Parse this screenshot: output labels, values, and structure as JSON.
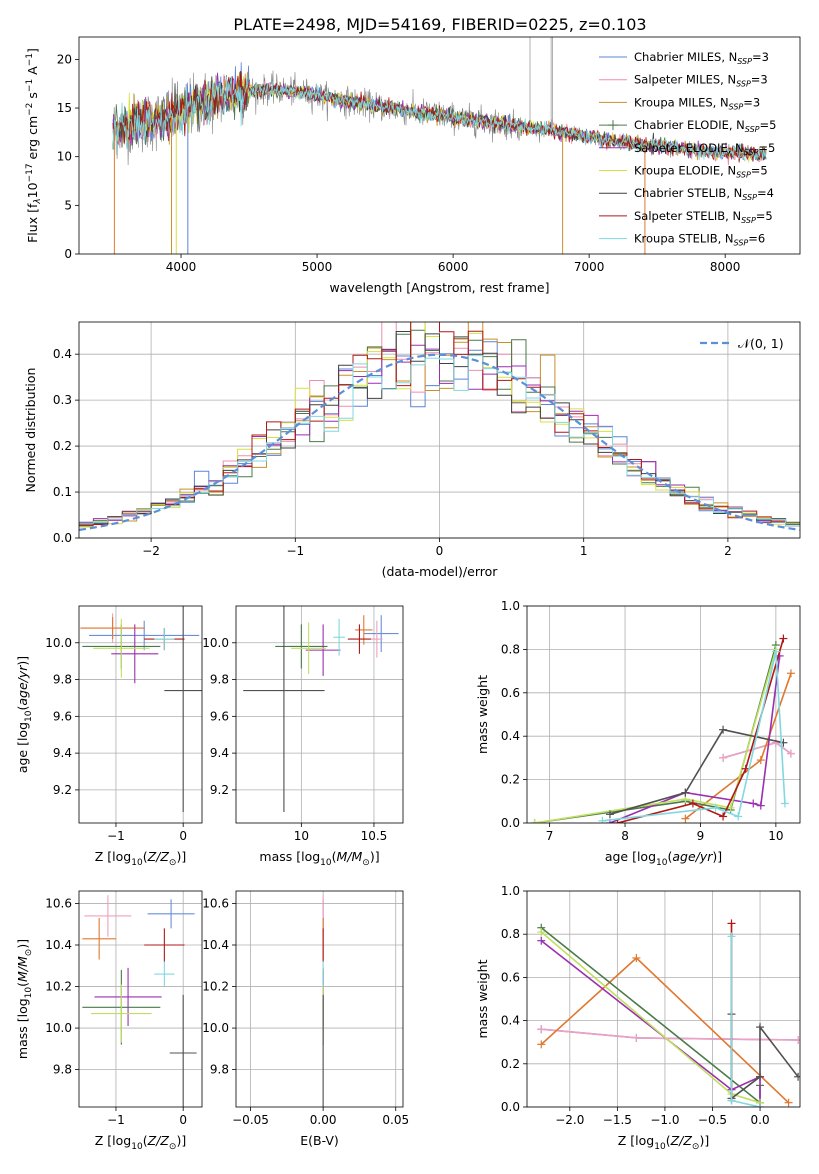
{
  "figure_title": "PLATE=2498, MJD=54169, FIBERID=0225, z=0.103",
  "series_names": [
    "Chabrier MILES",
    "Salpeter MILES",
    "Kroupa MILES",
    "Chabrier ELODIE",
    "Salpeter ELODIE",
    "Kroupa ELODIE",
    "Chabrier STELIB",
    "Salpeter STELIB",
    "Kroupa STELIB"
  ],
  "colors": [
    "#5b84d6",
    "#f08cb0",
    "#c8922a",
    "#4a7a4a",
    "#9a2fb0",
    "#d8e040",
    "#404040",
    "#b01818",
    "#7fd8e0"
  ],
  "summary_colors": [
    "#6a8fd8",
    "#f0a0c0",
    "#e07830",
    "#4a7a4a",
    "#9a2fb0",
    "#c0e060",
    "#505050",
    "#b01818",
    "#80d8e0"
  ],
  "chart_data": [
    {
      "id": "spectrum",
      "type": "line",
      "xlabel": "wavelength [Angstrom, rest frame]",
      "ylabel": "Flux [f",
      "xlim": [
        3250,
        8550
      ],
      "ylim": [
        0,
        22.3
      ],
      "xticks": [
        4000,
        5000,
        6000,
        7000,
        8000
      ],
      "yticks": [
        0,
        5,
        10,
        15,
        20
      ],
      "grid": false,
      "legend_position": "top-right",
      "legend": [
        {
          "label": "Chabrier MILES",
          "nssp": "3"
        },
        {
          "label": "Salpeter MILES",
          "nssp": "3"
        },
        {
          "label": "Kroupa MILES",
          "nssp": "3"
        },
        {
          "label": "Chabrier ELODIE",
          "nssp": "5"
        },
        {
          "label": "Salpeter ELODIE",
          "nssp": "5"
        },
        {
          "label": "Kroupa ELODIE",
          "nssp": "5"
        },
        {
          "label": "Chabrier STELIB",
          "nssp": "4"
        },
        {
          "label": "Salpeter STELIB",
          "nssp": "5"
        },
        {
          "label": "Kroupa STELIB",
          "nssp": "6"
        }
      ],
      "data_range": [
        3500,
        8300
      ],
      "continuum": [
        [
          3500,
          12.9
        ],
        [
          3700,
          13.5
        ],
        [
          3900,
          14.0
        ],
        [
          4000,
          14.6
        ],
        [
          4100,
          15.3
        ],
        [
          4300,
          16.2
        ],
        [
          4500,
          16.8
        ],
        [
          4700,
          16.9
        ],
        [
          4900,
          16.6
        ],
        [
          5100,
          16.0
        ],
        [
          5300,
          15.5
        ],
        [
          5500,
          15.1
        ],
        [
          5700,
          14.6
        ],
        [
          5900,
          14.3
        ],
        [
          6100,
          13.8
        ],
        [
          6300,
          13.5
        ],
        [
          6500,
          13.1
        ],
        [
          6700,
          12.8
        ],
        [
          6900,
          12.3
        ],
        [
          7100,
          11.8
        ],
        [
          7300,
          11.4
        ],
        [
          7500,
          11.1
        ],
        [
          7700,
          10.8
        ],
        [
          7900,
          10.5
        ],
        [
          8100,
          10.4
        ],
        [
          8300,
          10.2
        ]
      ],
      "dips": [
        [
          3510,
          0
        ],
        [
          3930,
          0
        ],
        [
          3965,
          0
        ],
        [
          4050,
          0
        ],
        [
          6805,
          0
        ],
        [
          7410,
          0
        ]
      ],
      "spikes": [
        [
          6565,
          22.3
        ],
        [
          6720,
          22.3
        ],
        [
          6730,
          22.3
        ]
      ]
    },
    {
      "id": "residuals",
      "type": "step",
      "xlabel": "(data-model)/error",
      "ylabel": "Normed distribution",
      "xlim": [
        -2.5,
        2.5
      ],
      "ylim": [
        0,
        0.47
      ],
      "xticks": [
        -2,
        -1,
        0,
        1,
        2
      ],
      "yticks": [
        0,
        0.1,
        0.2,
        0.3,
        0.4
      ],
      "grid": true,
      "legend_position": "top-right",
      "reference_label": "𝒩(0, 1)",
      "bin_edges_range": [
        -2.5,
        2.5
      ],
      "bin_width": 0.1
    },
    {
      "id": "age_vs_z",
      "type": "errorbar",
      "xlabel": "Z [log",
      "ylabel": "age  [log",
      "xlim": [
        -1.55,
        0.28
      ],
      "ylim": [
        9.02,
        10.2
      ],
      "xticks": [
        -1,
        0
      ],
      "yticks": [
        9.2,
        9.4,
        9.6,
        9.8,
        10.0
      ],
      "grid": true,
      "points": [
        {
          "x": -0.58,
          "y": 10.04,
          "xerr": 0.82,
          "yerr": 0.08
        },
        {
          "x": -1.05,
          "y": 10.08,
          "xerr": 0.45,
          "yerr": 0.08
        },
        {
          "x": -1.05,
          "y": 10.08,
          "xerr": 0.48,
          "yerr": 0.06
        },
        {
          "x": -0.92,
          "y": 9.98,
          "xerr": 0.58,
          "yerr": 0.12
        },
        {
          "x": -0.72,
          "y": 9.94,
          "xerr": 0.35,
          "yerr": 0.16
        },
        {
          "x": -0.92,
          "y": 9.97,
          "xerr": 0.42,
          "yerr": 0.16
        },
        {
          "x": 0.0,
          "y": 9.74,
          "xerr": 0.28,
          "yerr": 0.66
        },
        {
          "x": -0.28,
          "y": 10.02,
          "xerr": 0.3,
          "yerr": 0.06
        },
        {
          "x": -0.28,
          "y": 10.02,
          "xerr": 0.15,
          "yerr": 0.06
        }
      ]
    },
    {
      "id": "age_vs_mass",
      "type": "errorbar",
      "xlabel": "mass [log",
      "ylabel": "",
      "xlim": [
        9.55,
        10.7
      ],
      "ylim": [
        9.02,
        10.2
      ],
      "xticks": [
        10.0,
        10.5
      ],
      "yticks": [
        9.2,
        9.4,
        9.6,
        9.8,
        10.0
      ],
      "grid": true,
      "points": [
        {
          "x": 10.55,
          "y": 10.05,
          "xerr": 0.12,
          "yerr": 0.1
        },
        {
          "x": 10.52,
          "y": 10.02,
          "xerr": 0.04,
          "yerr": 0.1
        },
        {
          "x": 10.43,
          "y": 10.07,
          "xerr": 0.06,
          "yerr": 0.08
        },
        {
          "x": 10.0,
          "y": 9.98,
          "xerr": 0.18,
          "yerr": 0.12
        },
        {
          "x": 10.15,
          "y": 9.96,
          "xerr": 0.12,
          "yerr": 0.14
        },
        {
          "x": 10.05,
          "y": 9.97,
          "xerr": 0.12,
          "yerr": 0.14
        },
        {
          "x": 9.88,
          "y": 9.74,
          "xerr": 0.28,
          "yerr": 0.66
        },
        {
          "x": 10.4,
          "y": 10.02,
          "xerr": 0.08,
          "yerr": 0.08
        },
        {
          "x": 10.26,
          "y": 10.03,
          "xerr": 0.04,
          "yerr": 0.1
        }
      ]
    },
    {
      "id": "weight_vs_age",
      "type": "line",
      "xlabel": "age  [log",
      "ylabel": "mass weight",
      "xlim": [
        6.7,
        10.32
      ],
      "ylim": [
        0,
        1.0
      ],
      "xticks": [
        7,
        8,
        9,
        10
      ],
      "yticks": [
        0,
        0.2,
        0.4,
        0.6,
        0.8,
        1.0
      ],
      "grid": true,
      "series": [
        {
          "x": [
            9.3,
            10.0,
            10.2
          ],
          "y": [
            0.3,
            0.37,
            0.32
          ]
        },
        {
          "x": [
            9.3,
            10.0,
            10.2
          ],
          "y": [
            0.3,
            0.37,
            0.32
          ]
        },
        {
          "x": [
            8.8,
            9.8,
            10.2
          ],
          "y": [
            0.02,
            0.29,
            0.69
          ]
        },
        {
          "x": [
            6.8,
            8.8,
            9.4,
            10.0
          ],
          "y": [
            0.0,
            0.1,
            0.06,
            0.82
          ]
        },
        {
          "x": [
            7.8,
            8.8,
            9.7,
            9.8,
            10.05
          ],
          "y": [
            0.0,
            0.14,
            0.09,
            0.08,
            0.77
          ]
        },
        {
          "x": [
            6.8,
            8.8,
            9.4,
            10.0
          ],
          "y": [
            0.0,
            0.11,
            0.07,
            0.8
          ]
        },
        {
          "x": [
            7.8,
            8.8,
            9.3,
            10.1
          ],
          "y": [
            0.04,
            0.14,
            0.43,
            0.37
          ]
        },
        {
          "x": [
            7.9,
            8.9,
            9.3,
            9.6,
            10.1
          ],
          "y": [
            0.0,
            0.09,
            0.03,
            0.25,
            0.85
          ]
        },
        {
          "x": [
            7.7,
            9.2,
            9.5,
            10.0,
            10.12
          ],
          "y": [
            0.01,
            0.07,
            0.03,
            0.79,
            0.09
          ]
        }
      ]
    },
    {
      "id": "mass_vs_z",
      "type": "errorbar",
      "xlabel": "Z [log",
      "ylabel": "mass [log",
      "xlim": [
        -1.55,
        0.28
      ],
      "ylim": [
        9.62,
        10.66
      ],
      "xticks": [
        -1,
        0
      ],
      "yticks": [
        9.8,
        10.0,
        10.2,
        10.4,
        10.6
      ],
      "grid": true,
      "points": [
        {
          "x": -0.18,
          "y": 10.55,
          "xerr": 0.35,
          "yerr": 0.07
        },
        {
          "x": -1.12,
          "y": 10.54,
          "xerr": 0.35,
          "yerr": 0.1
        },
        {
          "x": -1.25,
          "y": 10.43,
          "xerr": 0.25,
          "yerr": 0.1
        },
        {
          "x": -0.92,
          "y": 10.1,
          "xerr": 0.58,
          "yerr": 0.18
        },
        {
          "x": -0.82,
          "y": 10.15,
          "xerr": 0.5,
          "yerr": 0.14
        },
        {
          "x": -0.92,
          "y": 10.07,
          "xerr": 0.45,
          "yerr": 0.14
        },
        {
          "x": 0.0,
          "y": 9.88,
          "xerr": 0.2,
          "yerr": 0.28
        },
        {
          "x": -0.28,
          "y": 10.4,
          "xerr": 0.3,
          "yerr": 0.08
        },
        {
          "x": -0.28,
          "y": 10.26,
          "xerr": 0.15,
          "yerr": 0.06
        }
      ]
    },
    {
      "id": "mass_vs_ebv",
      "type": "errorbar",
      "xlabel": "E(B-V)",
      "ylabel": "",
      "xlim": [
        -0.06,
        0.055
      ],
      "ylim": [
        9.62,
        10.66
      ],
      "xticks": [
        -0.05,
        0.0,
        0.05
      ],
      "xtick_labels": [
        "−0.05",
        "0.00",
        "0.05"
      ],
      "yticks": [
        9.8,
        10.0,
        10.2,
        10.4,
        10.6
      ],
      "grid": true,
      "points": [
        {
          "x": 0.0,
          "y": 10.55,
          "xerr": 0.0,
          "yerr": 0.07
        },
        {
          "x": 0.0,
          "y": 10.54,
          "xerr": 0.0,
          "yerr": 0.1
        },
        {
          "x": 0.0,
          "y": 10.43,
          "xerr": 0.0,
          "yerr": 0.1
        },
        {
          "x": 0.0,
          "y": 10.1,
          "xerr": 0.0,
          "yerr": 0.18
        },
        {
          "x": 0.0,
          "y": 10.15,
          "xerr": 0.0,
          "yerr": 0.14
        },
        {
          "x": 0.0,
          "y": 10.07,
          "xerr": 0.0,
          "yerr": 0.14
        },
        {
          "x": 0.0,
          "y": 9.88,
          "xerr": 0.0,
          "yerr": 0.28
        },
        {
          "x": 0.0,
          "y": 10.4,
          "xerr": 0.0,
          "yerr": 0.08
        },
        {
          "x": 0.0,
          "y": 10.26,
          "xerr": 0.0,
          "yerr": 0.06
        }
      ]
    },
    {
      "id": "weight_vs_z",
      "type": "line",
      "xlabel": "Z [log",
      "ylabel": "mass weight",
      "xlim": [
        -2.45,
        0.42
      ],
      "ylim": [
        0,
        1.0
      ],
      "xticks": [
        -2.0,
        -1.5,
        -1.0,
        -0.5,
        0.0
      ],
      "xtick_labels": [
        "−2.0",
        "−1.5",
        "−1.0",
        "−0.5",
        "0.0"
      ],
      "yticks": [
        0,
        0.2,
        0.4,
        0.6,
        0.8,
        1.0
      ],
      "grid": true,
      "series": [
        {
          "x": [
            -2.3,
            -1.3,
            0.4
          ],
          "y": [
            0.36,
            0.32,
            0.31
          ]
        },
        {
          "x": [
            -2.3,
            -1.3,
            0.4
          ],
          "y": [
            0.36,
            0.32,
            0.31
          ]
        },
        {
          "x": [
            -2.3,
            -1.3,
            0.3
          ],
          "y": [
            0.29,
            0.69,
            0.02
          ]
        },
        {
          "x": [
            -2.3,
            0.0,
            0.0
          ],
          "y": [
            0.83,
            0.02,
            0.1
          ]
        },
        {
          "x": [
            -2.3,
            -0.3,
            0.0,
            0.0
          ],
          "y": [
            0.77,
            0.08,
            0.14,
            0.0
          ]
        },
        {
          "x": [
            -2.3,
            -0.3,
            0.0
          ],
          "y": [
            0.81,
            0.06,
            0.02
          ]
        },
        {
          "x": [
            -0.3,
            -0.3,
            0.0,
            0.0,
            0.4
          ],
          "y": [
            0.43,
            0.04,
            0.14,
            0.37,
            0.14
          ]
        },
        {
          "x": [
            -0.3,
            -0.3
          ],
          "y": [
            0.85,
            0.03
          ]
        },
        {
          "x": [
            -0.3,
            -0.3,
            0.0
          ],
          "y": [
            0.79,
            0.03,
            0.0
          ]
        }
      ]
    }
  ]
}
